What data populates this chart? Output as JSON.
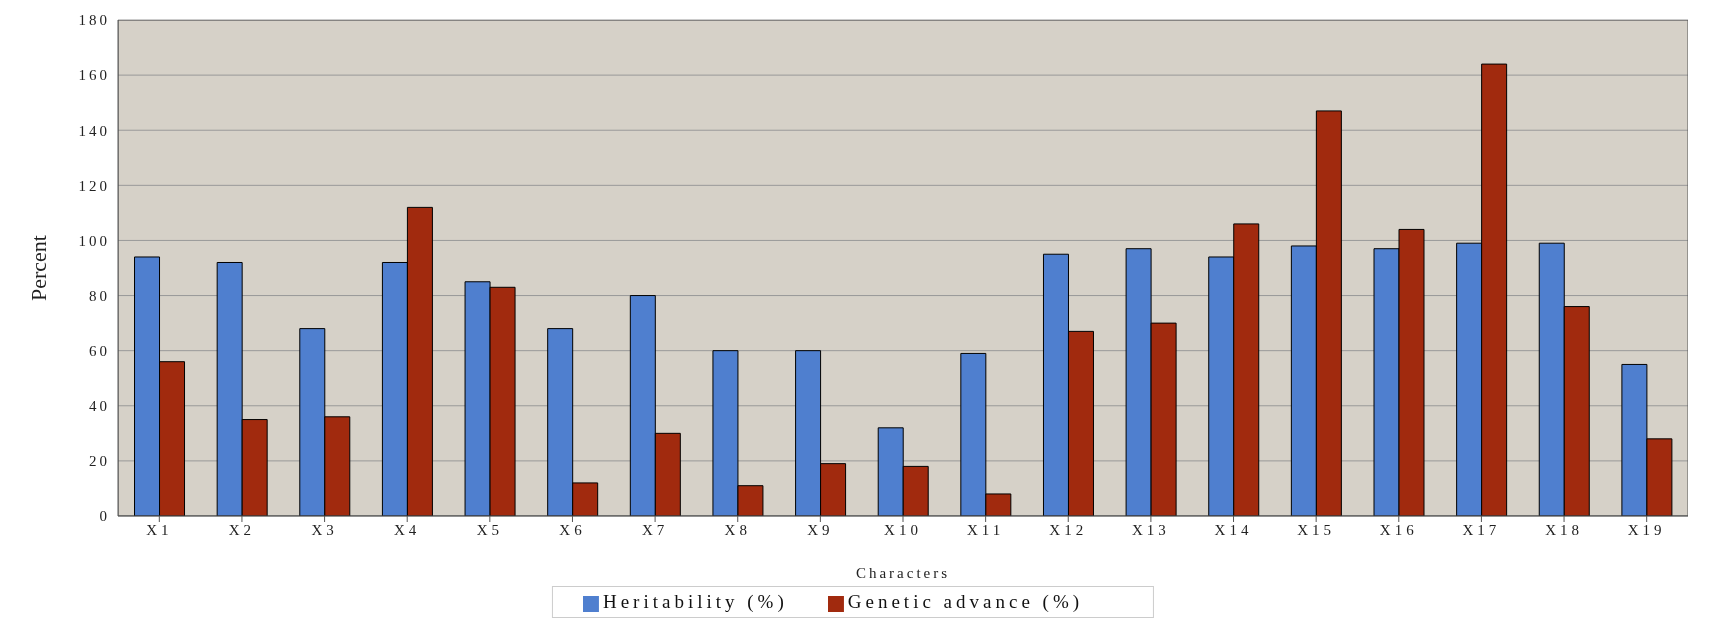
{
  "chart_data": {
    "type": "bar",
    "xlabel": "Characters",
    "ylabel": "Percent",
    "categories": [
      "X1",
      "X2",
      "X3",
      "X4",
      "X5",
      "X6",
      "X7",
      "X8",
      "X9",
      "X10",
      "X11",
      "X12",
      "X13",
      "X14",
      "X15",
      "X16",
      "X17",
      "X18",
      "X19"
    ],
    "series": [
      {
        "name": "Heritability (%)",
        "color": "#4f7fcf",
        "values": [
          94,
          92,
          68,
          92,
          85,
          68,
          80,
          60,
          60,
          32,
          59,
          95,
          97,
          94,
          98,
          97,
          99,
          99,
          55
        ]
      },
      {
        "name": "Genetic advance (%)",
        "color": "#a12a0e",
        "values": [
          56,
          35,
          36,
          112,
          83,
          12,
          30,
          11,
          19,
          18,
          8,
          67,
          70,
          106,
          147,
          104,
          164,
          76,
          28
        ]
      }
    ],
    "ylim": [
      0,
      180
    ],
    "yticks": [
      0,
      20,
      40,
      60,
      80,
      100,
      120,
      140,
      160,
      180
    ],
    "grid": "y",
    "legend": "bottom"
  }
}
